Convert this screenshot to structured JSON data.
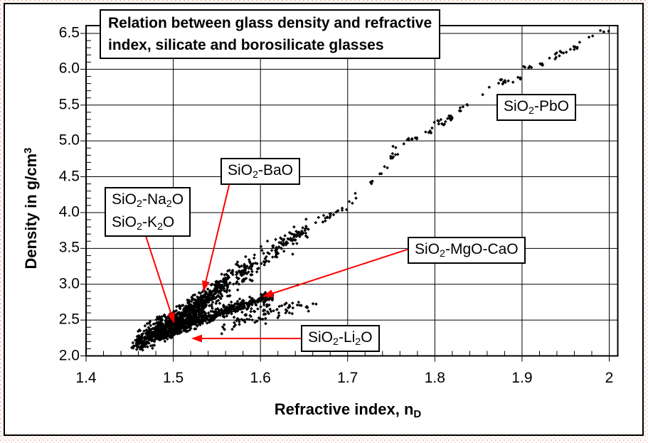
{
  "chart_data": {
    "type": "scatter",
    "title": "Relation between glass density and refractive index, silicate and borosilicate glasses",
    "title_lines": [
      "Relation between glass density and refractive",
      "index, silicate and borosilicate glasses"
    ],
    "xlabel": "Refractive index, n_D_",
    "ylabel": "Density in g/cm^3^",
    "xlim": [
      1.4,
      2.0
    ],
    "ylim": [
      2.0,
      6.5
    ],
    "x_ticks": [
      [
        1.4,
        "1.4"
      ],
      [
        1.5,
        "1.5"
      ],
      [
        1.6,
        "1.6"
      ],
      [
        1.7,
        "1.7"
      ],
      [
        1.8,
        "1.8"
      ],
      [
        1.9,
        "1.9"
      ],
      [
        2.0,
        "2"
      ]
    ],
    "y_ticks": [
      [
        2.0,
        "2.0"
      ],
      [
        2.5,
        "2.5"
      ],
      [
        3.0,
        "3.0"
      ],
      [
        3.5,
        "3.5"
      ],
      [
        4.0,
        "4.0"
      ],
      [
        4.5,
        "4.5"
      ],
      [
        5.0,
        "5.0"
      ],
      [
        5.5,
        "5.5"
      ],
      [
        6.0,
        "6.0"
      ],
      [
        6.5,
        "6.5"
      ]
    ],
    "x_minor_step": 0.02,
    "y_minor_step": 0.1,
    "grid": true,
    "legend": "none",
    "marker": "diamond",
    "point_color": "#000000",
    "arrow_color": "#ff0000",
    "seed": 42,
    "series": [
      {
        "id": "main-band",
        "name": "SiO2-Na2O / SiO2-K2O / SiO2-BaO main silicate band",
        "n_points": 1100,
        "y_jitter": 0.085,
        "y_clamp": 0.2,
        "x_dist": [
          [
            1.458,
            1.478,
            0.1
          ],
          [
            1.478,
            1.505,
            0.3
          ],
          [
            1.505,
            1.535,
            0.28
          ],
          [
            1.535,
            1.565,
            0.17
          ],
          [
            1.565,
            1.6,
            0.08
          ],
          [
            1.6,
            1.63,
            0.045
          ],
          [
            1.63,
            1.655,
            0.025
          ]
        ],
        "trend": [
          [
            1.458,
            2.19
          ],
          [
            1.48,
            2.33
          ],
          [
            1.5,
            2.47
          ],
          [
            1.52,
            2.62
          ],
          [
            1.54,
            2.8
          ],
          [
            1.56,
            3.0
          ],
          [
            1.58,
            3.16
          ],
          [
            1.6,
            3.33
          ],
          [
            1.62,
            3.52
          ],
          [
            1.655,
            3.8
          ]
        ]
      },
      {
        "id": "pbo-line",
        "name": "SiO2-PbO line",
        "n_points": 85,
        "y_jitter": 0.032,
        "y_clamp": 0.08,
        "clump": true,
        "x_dist": [
          [
            1.628,
            1.68,
            0.3
          ],
          [
            1.68,
            1.75,
            0.22
          ],
          [
            1.75,
            1.82,
            0.2
          ],
          [
            1.82,
            1.9,
            0.14
          ],
          [
            1.9,
            1.96,
            0.09
          ],
          [
            1.96,
            2.006,
            0.05
          ]
        ],
        "trend": [
          [
            1.628,
            3.55
          ],
          [
            1.66,
            3.82
          ],
          [
            1.7,
            4.08
          ],
          [
            1.73,
            4.45
          ],
          [
            1.76,
            4.95
          ],
          [
            1.8,
            5.17
          ],
          [
            1.85,
            5.6
          ],
          [
            1.9,
            5.95
          ],
          [
            1.95,
            6.27
          ],
          [
            2.006,
            6.56
          ]
        ]
      },
      {
        "id": "mgo-cao",
        "name": "SiO2-MgO-CaO branch",
        "n_points": 430,
        "y_jitter": 0.04,
        "y_clamp": 0.1,
        "x_dist": [
          [
            1.497,
            1.52,
            0.22
          ],
          [
            1.52,
            1.55,
            0.28
          ],
          [
            1.55,
            1.58,
            0.22
          ],
          [
            1.58,
            1.6,
            0.16
          ],
          [
            1.6,
            1.614,
            0.12
          ]
        ],
        "trend": [
          [
            1.497,
            2.36
          ],
          [
            1.53,
            2.5
          ],
          [
            1.56,
            2.63
          ],
          [
            1.59,
            2.75
          ],
          [
            1.614,
            2.84
          ]
        ]
      },
      {
        "id": "mgo-tail",
        "name": "SiO2-MgO-CaO scattered tail",
        "n_points": 85,
        "y_jitter": 0.05,
        "y_clamp": 0.12,
        "x_dist": [
          [
            1.555,
            1.6,
            0.45
          ],
          [
            1.6,
            1.635,
            0.35
          ],
          [
            1.635,
            1.665,
            0.2
          ]
        ],
        "trend": [
          [
            1.555,
            2.42
          ],
          [
            1.59,
            2.58
          ],
          [
            1.62,
            2.65
          ],
          [
            1.665,
            2.71
          ]
        ]
      },
      {
        "id": "li-low",
        "name": "SiO2-Li2O low edge",
        "n_points": 70,
        "y_jitter": 0.035,
        "y_clamp": 0.09,
        "x_dist": [
          [
            1.452,
            1.47,
            0.35
          ],
          [
            1.47,
            1.5,
            0.35
          ],
          [
            1.5,
            1.53,
            0.3
          ]
        ],
        "trend": [
          [
            1.452,
            2.13
          ],
          [
            1.47,
            2.22
          ],
          [
            1.5,
            2.34
          ],
          [
            1.53,
            2.42
          ]
        ]
      }
    ],
    "extra_points": [
      [
        1.637,
        3.42
      ],
      [
        1.643,
        2.99
      ],
      [
        1.606,
        2.45
      ],
      [
        1.458,
        2.09
      ],
      [
        1.468,
        2.13
      ]
    ],
    "annotations": [
      {
        "id": "pbo",
        "lines": [
          "SiO_2_-PbO"
        ]
      },
      {
        "id": "bao",
        "lines": [
          "SiO_2_-BaO"
        ],
        "arrow": {
          "from": [
            1.5645,
            4.405
          ],
          "to": [
            1.5345,
            2.897
          ]
        }
      },
      {
        "id": "nak",
        "lines": [
          "SiO_2_-Na_2_O",
          "SiO_2_-K_2_O"
        ],
        "arrow": {
          "from": [
            1.4685,
            3.672
          ],
          "to": [
            1.5012,
            2.452
          ]
        }
      },
      {
        "id": "mgo",
        "lines": [
          "SiO_2_-MgO-CaO"
        ],
        "arrow": {
          "from": [
            1.7686,
            3.485
          ],
          "to": [
            1.6022,
            2.826
          ]
        }
      },
      {
        "id": "li",
        "lines": [
          "SiO_2_-Li_2_O"
        ],
        "arrow": {
          "from": [
            1.6463,
            2.243
          ],
          "to": [
            1.5207,
            2.243
          ]
        }
      }
    ]
  }
}
